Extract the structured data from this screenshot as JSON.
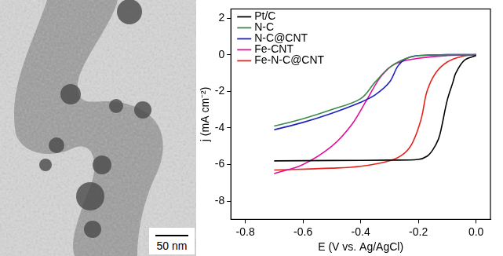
{
  "micrograph": {
    "scale_bar": "50 nm"
  },
  "chart_data": {
    "type": "line",
    "x_label": "E (V vs. Ag/AgCl)",
    "y_label": "j (mA cm⁻²)",
    "xlim": [
      -0.85,
      0.05
    ],
    "xticks": [
      -0.8,
      -0.6,
      -0.4,
      -0.2,
      {
        "value": 0,
        "label": "0.0"
      }
    ],
    "ylim": [
      -9,
      2.5
    ],
    "yticks": [
      -8,
      -6,
      -4,
      -2,
      0,
      2
    ],
    "grid": false,
    "legend": "upper left",
    "series": [
      {
        "name": "Pt/C",
        "color": "#000000",
        "x": [
          -0.7,
          -0.5,
          -0.3,
          -0.2,
          -0.17,
          -0.15,
          -0.13,
          -0.12,
          -0.1,
          -0.08,
          -0.07,
          -0.04,
          0.0
        ],
        "values": [
          -5.8,
          -5.78,
          -5.76,
          -5.72,
          -5.55,
          -5.2,
          -4.6,
          -4.0,
          -2.5,
          -1.5,
          -1.0,
          -0.3,
          -0.05
        ]
      },
      {
        "name": "N-C",
        "color": "#3a8a4a",
        "x": [
          -0.7,
          -0.6,
          -0.5,
          -0.4,
          -0.35,
          -0.3,
          -0.25,
          -0.2,
          -0.1,
          0.0
        ],
        "values": [
          -3.9,
          -3.5,
          -3.0,
          -2.4,
          -1.5,
          -0.7,
          -0.25,
          -0.05,
          0.0,
          0.0
        ]
      },
      {
        "name": "N-C@CNT",
        "color": "#1f1fbf",
        "x": [
          -0.7,
          -0.6,
          -0.5,
          -0.4,
          -0.35,
          -0.3,
          -0.27,
          -0.24,
          -0.2,
          -0.1,
          0.0
        ],
        "values": [
          -4.1,
          -3.7,
          -3.2,
          -2.6,
          -2.2,
          -1.5,
          -0.6,
          -0.2,
          -0.05,
          0.0,
          0.0
        ]
      },
      {
        "name": "Fe-CNT",
        "color": "#e0109a",
        "x": [
          -0.7,
          -0.6,
          -0.5,
          -0.43,
          -0.38,
          -0.33,
          -0.28,
          -0.2,
          -0.1,
          0.0
        ],
        "values": [
          -6.5,
          -6.0,
          -5.0,
          -3.8,
          -2.5,
          -1.2,
          -0.5,
          -0.2,
          -0.05,
          0.0
        ]
      },
      {
        "name": "Fe-N-C@CNT",
        "color": "#e8231c",
        "x": [
          -0.7,
          -0.5,
          -0.4,
          -0.3,
          -0.25,
          -0.22,
          -0.19,
          -0.17,
          -0.14,
          -0.1,
          -0.05,
          0.0
        ],
        "values": [
          -6.3,
          -6.2,
          -6.1,
          -5.8,
          -5.4,
          -4.8,
          -3.5,
          -2.0,
          -1.0,
          -0.4,
          -0.1,
          0.0
        ]
      }
    ]
  }
}
